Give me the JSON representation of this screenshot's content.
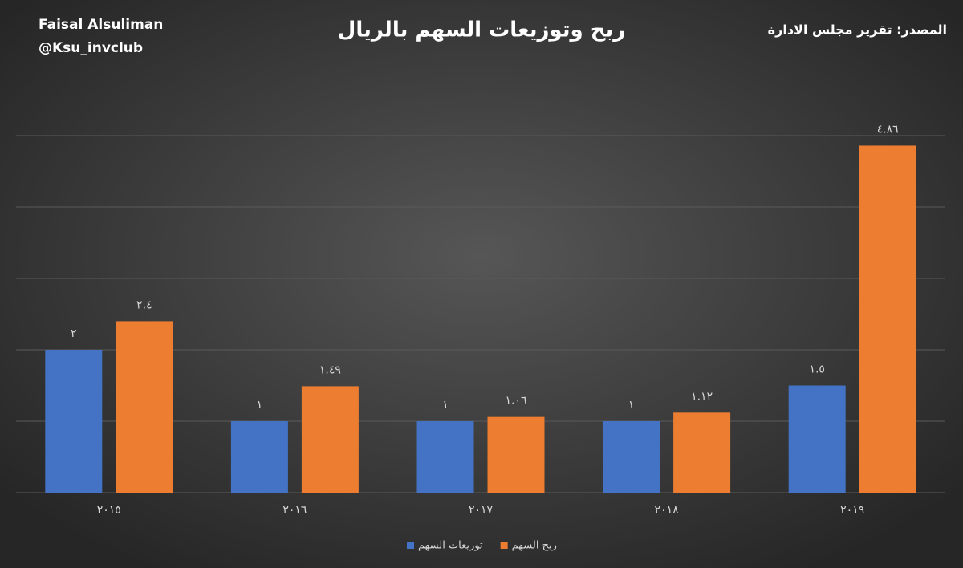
{
  "chart_data": {
    "type": "bar",
    "title": "ربح وتوزيعات السهم بالريال",
    "author": "Faisal Alsuliman",
    "handle": "@Ksu_invclub",
    "source": "المصدر: تقرير مجلس الادارة",
    "categories": [
      "٢٠١٥",
      "٢٠١٦",
      "٢٠١٧",
      "٢٠١٨",
      "٢٠١٩"
    ],
    "series": [
      {
        "name": "توزيعات السهم",
        "color": "#4472c4",
        "values": [
          2,
          1,
          1,
          1,
          1.5
        ],
        "value_labels": [
          "٢",
          "١",
          "١",
          "١",
          "١.٥"
        ]
      },
      {
        "name": "ربح السهم",
        "color": "#ed7d31",
        "values": [
          2.4,
          1.49,
          1.06,
          1.12,
          4.86
        ],
        "value_labels": [
          "٢.٤",
          "١.٤٩",
          "١.٠٦",
          "١.١٢",
          "٤.٨٦"
        ]
      }
    ],
    "ylim": [
      0,
      5
    ],
    "yticks": [
      0,
      1,
      2,
      3,
      4,
      5
    ],
    "grid": true,
    "legend": "bottom"
  }
}
